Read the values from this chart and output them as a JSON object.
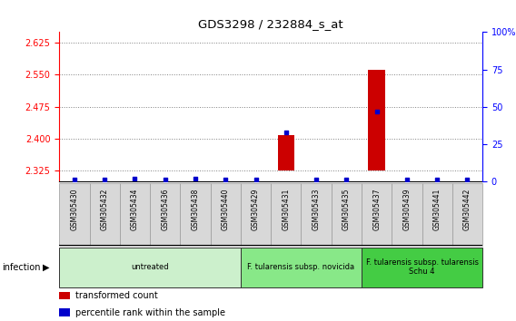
{
  "title": "GDS3298 / 232884_s_at",
  "samples": [
    "GSM305430",
    "GSM305432",
    "GSM305434",
    "GSM305436",
    "GSM305438",
    "GSM305440",
    "GSM305429",
    "GSM305431",
    "GSM305433",
    "GSM305435",
    "GSM305437",
    "GSM305439",
    "GSM305441",
    "GSM305442"
  ],
  "transformed_count": [
    2.325,
    2.325,
    2.325,
    2.325,
    2.325,
    2.325,
    2.325,
    2.408,
    2.325,
    2.325,
    2.561,
    2.325,
    2.325,
    2.325
  ],
  "percentile_rank": [
    1,
    1,
    2,
    1,
    2,
    1,
    1,
    33,
    1,
    1,
    47,
    1,
    1,
    1
  ],
  "ylim_left": [
    2.3,
    2.65
  ],
  "ylim_right": [
    0,
    100
  ],
  "yticks_left": [
    2.325,
    2.4,
    2.475,
    2.55,
    2.625
  ],
  "yticks_right": [
    0,
    25,
    50,
    75,
    100
  ],
  "baseline": 2.325,
  "groups": [
    {
      "label": "untreated",
      "start": 0,
      "end": 6,
      "color": "#ccf0cc"
    },
    {
      "label": "F. tularensis subsp. novicida",
      "start": 6,
      "end": 10,
      "color": "#88e888"
    },
    {
      "label": "F. tularensis subsp. tularensis\nSchu 4",
      "start": 10,
      "end": 14,
      "color": "#44cc44"
    }
  ],
  "bar_color": "#cc0000",
  "dot_color": "#0000cc",
  "background_color": "#ffffff",
  "infection_label": "infection",
  "legend": [
    {
      "color": "#cc0000",
      "label": "transformed count"
    },
    {
      "color": "#0000cc",
      "label": "percentile rank within the sample"
    }
  ]
}
